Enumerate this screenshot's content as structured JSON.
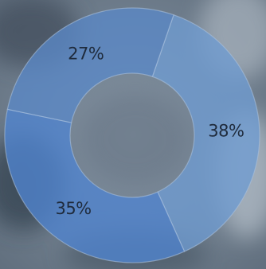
{
  "chart_data": {
    "type": "donut",
    "slices": [
      {
        "label": "38%",
        "value": 38,
        "color": "#6e9bd1"
      },
      {
        "label": "35%",
        "value": 35,
        "color": "#4f84cf"
      },
      {
        "label": "27%",
        "value": 27,
        "color": "#5a88c6"
      }
    ],
    "legend": "none",
    "grid": false
  }
}
